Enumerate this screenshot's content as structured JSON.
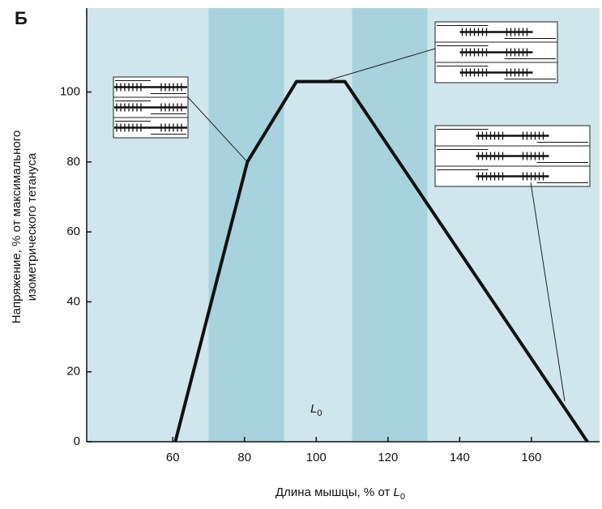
{
  "chart_data": {
    "type": "line",
    "panel_label": "Б",
    "y_label": [
      "Напряжение, % от максимального",
      "изометрического тетануса"
    ],
    "x_label": {
      "text": "Длина мышцы, % от",
      "symbol": "L",
      "subscript": "0"
    },
    "annotation": {
      "symbol": "L",
      "subscript": "0"
    },
    "x": [
      60.7,
      80.8,
      94.5,
      108,
      175.6
    ],
    "series": [
      {
        "color": "#111111",
        "values": [
          0,
          80,
          103,
          103,
          0
        ]
      }
    ],
    "shaded_ranges": [
      [
        70,
        91
      ],
      [
        110,
        131
      ]
    ],
    "xlim": [
      36,
      179
    ],
    "ylim": [
      0,
      124
    ],
    "xticks": [
      60,
      80,
      100,
      120,
      140,
      160
    ],
    "yticks": [
      0,
      20,
      40,
      60,
      80,
      100
    ],
    "background_color": "#cfe6ec",
    "shade_color": "#a8d2dd"
  }
}
